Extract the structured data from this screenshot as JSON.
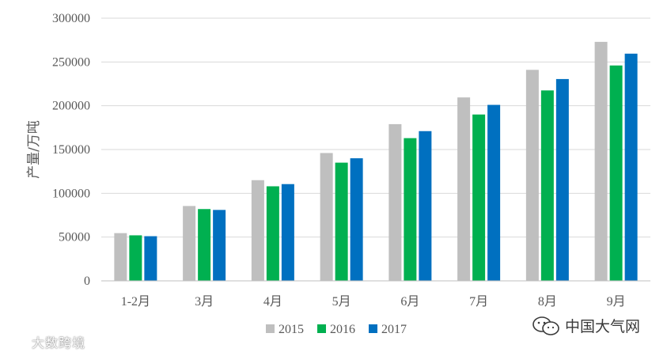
{
  "chart_data": {
    "type": "bar",
    "title": "",
    "xlabel": "",
    "ylabel": "产量/万吨",
    "categories": [
      "1-2月",
      "3月",
      "4月",
      "5月",
      "6月",
      "7月",
      "8月",
      "9月"
    ],
    "series": [
      {
        "name": "2015",
        "color": "#bfbfbf",
        "values": [
          54500,
          85500,
          115000,
          146000,
          179000,
          209500,
          241000,
          273000
        ]
      },
      {
        "name": "2016",
        "color": "#00b050",
        "values": [
          52000,
          82000,
          108000,
          135000,
          163000,
          190000,
          217500,
          246000
        ]
      },
      {
        "name": "2017",
        "color": "#0070c0",
        "values": [
          51000,
          81000,
          110500,
          140000,
          171000,
          201000,
          230500,
          259500
        ]
      }
    ],
    "ylim": [
      0,
      300000
    ],
    "yticks": [
      0,
      50000,
      100000,
      150000,
      200000,
      250000,
      300000
    ],
    "grid": true,
    "legend": "bottom"
  },
  "watermarks": {
    "left": "大数跨境",
    "right": "中国大气网",
    "left_icon": "logo-icon",
    "right_icon": "wechat-icon"
  }
}
